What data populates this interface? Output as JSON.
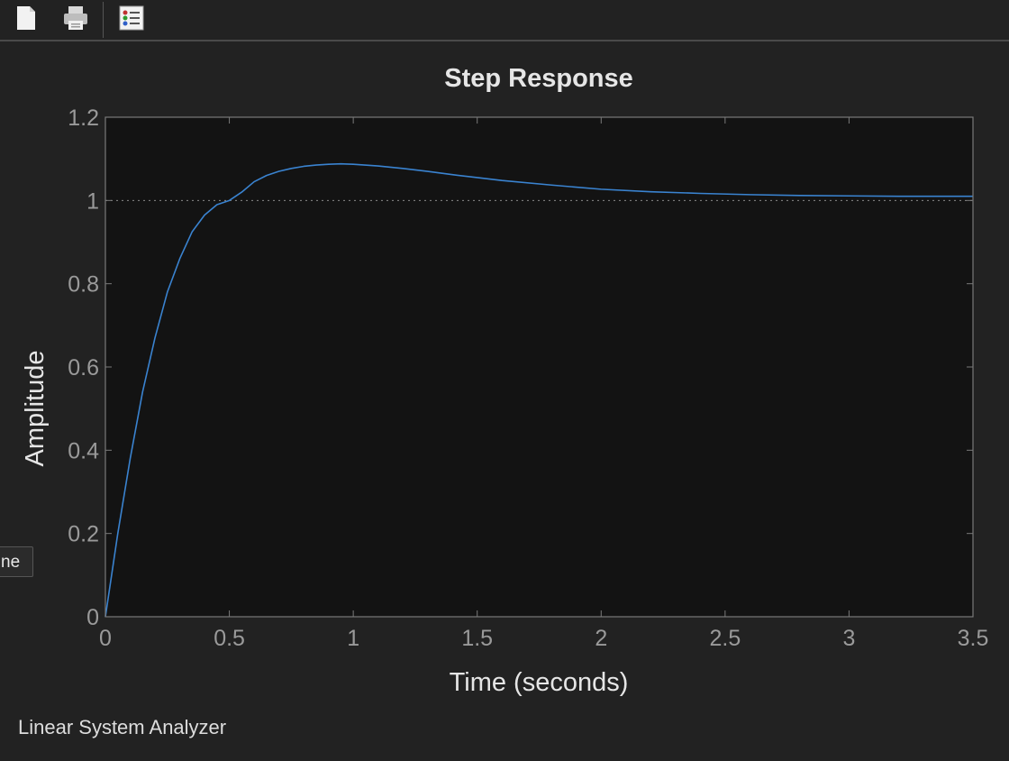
{
  "toolbar": {
    "buttons": [
      {
        "name": "new-figure-button",
        "icon": "new-document-icon"
      },
      {
        "name": "print-button",
        "icon": "printer-icon"
      },
      {
        "name": "legend-button",
        "icon": "legend-list-icon"
      }
    ]
  },
  "tooltip": {
    "text": "ne"
  },
  "status": {
    "text": "Linear System Analyzer"
  },
  "colors": {
    "background": "#222222",
    "axes_background": "#131313",
    "response_line": "#3a83d0",
    "text": "#e6e6e6",
    "tick_text": "#9a9a9a"
  },
  "chart_data": {
    "type": "line",
    "title": "Step Response",
    "xlabel": "Time (seconds)",
    "ylabel": "Amplitude",
    "xlim": [
      0,
      3.5
    ],
    "ylim": [
      0,
      1.2
    ],
    "xticks": [
      "0",
      "0.5",
      "1",
      "1.5",
      "2",
      "2.5",
      "3",
      "3.5"
    ],
    "yticks": [
      "0",
      "0.2",
      "0.4",
      "0.6",
      "0.8",
      "1",
      "1.2"
    ],
    "grid": false,
    "reference_line": {
      "y": 1,
      "style": "dotted"
    },
    "series": [
      {
        "x": [
          0,
          0.05,
          0.1,
          0.15,
          0.2,
          0.25,
          0.3,
          0.35,
          0.4,
          0.45,
          0.5,
          0.55,
          0.6,
          0.65,
          0.7,
          0.75,
          0.8,
          0.85,
          0.9,
          0.95,
          1.0,
          1.1,
          1.2,
          1.3,
          1.4,
          1.5,
          1.6,
          1.8,
          2.0,
          2.2,
          2.4,
          2.6,
          2.8,
          3.0,
          3.2,
          3.5
        ],
        "y": [
          0,
          0.2,
          0.38,
          0.54,
          0.67,
          0.78,
          0.86,
          0.925,
          0.965,
          0.99,
          1.0,
          1.02,
          1.045,
          1.06,
          1.07,
          1.077,
          1.082,
          1.085,
          1.087,
          1.088,
          1.087,
          1.083,
          1.077,
          1.07,
          1.062,
          1.055,
          1.048,
          1.037,
          1.027,
          1.021,
          1.017,
          1.014,
          1.012,
          1.011,
          1.01,
          1.01
        ]
      }
    ]
  }
}
